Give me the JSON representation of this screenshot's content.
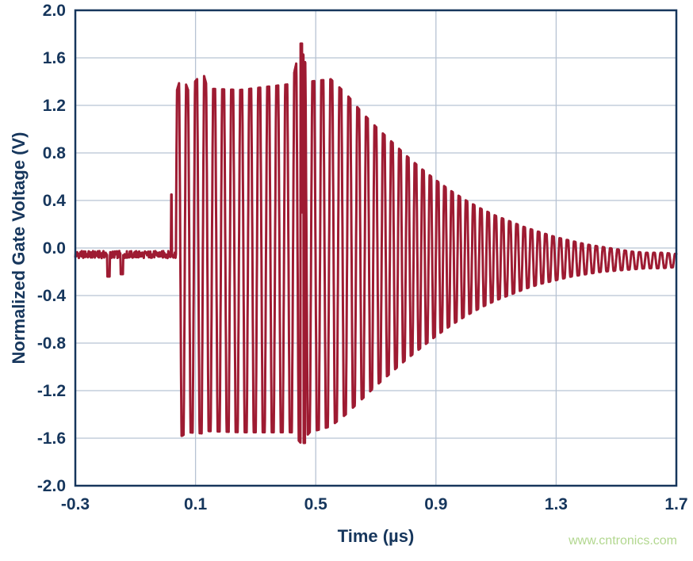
{
  "page": {
    "background": "#ffffff"
  },
  "chart_data": {
    "type": "line",
    "title": "",
    "xlabel": "Time (µs)",
    "ylabel": "Normalized Gate Voltage (V)",
    "xlim": [
      -0.3,
      1.7
    ],
    "ylim": [
      -2.0,
      2.0
    ],
    "xticks": [
      -0.3,
      0.1,
      0.5,
      0.9,
      1.3,
      1.7
    ],
    "xtick_labels": [
      "-0.3",
      "0.1",
      "0.5",
      "0.9",
      "1.3",
      "1.7"
    ],
    "yticks": [
      2.0,
      1.6,
      1.2,
      0.8,
      0.4,
      0.0,
      -0.4,
      -0.8,
      -1.2,
      -1.6,
      -2.0
    ],
    "ytick_labels": [
      "2.0",
      "1.6",
      "1.2",
      "0.8",
      "0.4",
      "0.0",
      "-0.4",
      "-0.8",
      "-1.2",
      "-1.6",
      "-2.0"
    ],
    "grid": true,
    "legend": "none",
    "series": [
      {
        "name": "normalized-gate-voltage",
        "color": "#9e1b32",
        "description": "Flat baseline near 0 V until 0.035 µs, then a ~33 MHz clipped oscillation burst between about +1.35 V and -1.55 V lasting to ~0.55 µs (single tallest spike +1.72 V / -1.64 V near 0.45 µs), followed by an exponential ring-down settling to about -0.1 V by 1.7 µs.",
        "waveform": {
          "baseline": {
            "start": -0.3,
            "end": 0.035,
            "level": -0.055,
            "noise": 0.03,
            "notches": [
              {
                "t": -0.19,
                "depth": -0.24
              },
              {
                "t": -0.145,
                "depth": -0.22
              }
            ],
            "pre_spike": {
              "t": 0.02,
              "peak": 0.45
            }
          },
          "burst": {
            "start": 0.035,
            "period_us": 0.03,
            "period_end_us": 0.024,
            "period_ramp": [
              0.6,
              0.9
            ],
            "clip_factor": 1.35,
            "spikes": [
              {
                "t": 0.452,
                "y": 1.72
              },
              {
                "t": 0.462,
                "y": -1.64
              }
            ],
            "envelope": {
              "t": [
                0.035,
                0.055,
                0.075,
                0.125,
                0.14,
                0.25,
                0.35,
                0.42,
                0.45,
                0.48,
                0.55,
                0.6,
                0.65,
                0.7,
                0.75,
                0.8,
                0.85,
                0.9,
                0.95,
                1.0,
                1.05,
                1.1,
                1.15,
                1.2,
                1.25,
                1.3,
                1.35,
                1.4,
                1.45,
                1.5,
                1.55,
                1.6,
                1.65,
                1.7
              ],
              "upper": [
                1.3,
                1.47,
                1.33,
                1.48,
                1.34,
                1.33,
                1.36,
                1.38,
                1.72,
                1.4,
                1.42,
                1.3,
                1.15,
                1.02,
                0.9,
                0.78,
                0.67,
                0.57,
                0.48,
                0.4,
                0.33,
                0.27,
                0.22,
                0.17,
                0.13,
                0.09,
                0.06,
                0.03,
                0.01,
                -0.01,
                -0.03,
                -0.04,
                -0.04,
                -0.05
              ],
              "lower": [
                -1.58,
                -1.58,
                -1.55,
                -1.56,
                -1.54,
                -1.55,
                -1.55,
                -1.55,
                -1.64,
                -1.55,
                -1.5,
                -1.4,
                -1.28,
                -1.16,
                -1.05,
                -0.94,
                -0.84,
                -0.74,
                -0.65,
                -0.57,
                -0.5,
                -0.44,
                -0.39,
                -0.34,
                -0.3,
                -0.27,
                -0.24,
                -0.22,
                -0.2,
                -0.19,
                -0.18,
                -0.17,
                -0.17,
                -0.16
              ]
            }
          }
        }
      }
    ]
  },
  "style": {
    "axis_color": "#16365c",
    "grid_color": "#b7c3d3",
    "trace_color": "#9e1b32",
    "background": "#ffffff"
  },
  "watermark": {
    "text": "www.cntronics.com",
    "color": "#b2d78f"
  }
}
